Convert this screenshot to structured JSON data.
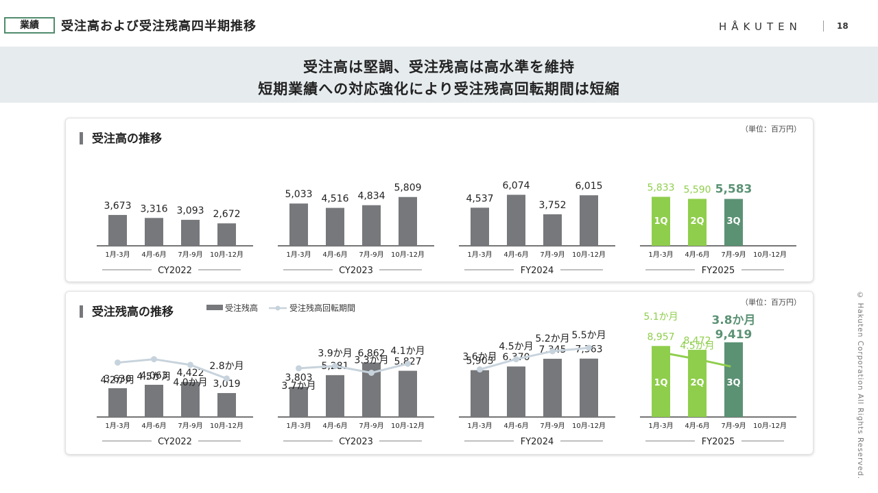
{
  "header": {
    "badge": "業績",
    "title": "受注高および受注残高四半期推移",
    "logo": "HÅKUTEN",
    "page_number": "18"
  },
  "banner": {
    "line1": "受注高は堅調、受注残高は高水準を維持",
    "line2": "短期業績への対応強化により受注残高回転期間は短縮"
  },
  "footer": {
    "copyright": "© Hakuten Corporation All Rights Reserved."
  },
  "colors": {
    "gray": "#76787b",
    "green_light": "#8fce4c",
    "green_dark": "#5b9274",
    "line": "#c7d3dc"
  },
  "chart_data": [
    {
      "type": "bar",
      "title": "受注高の推移",
      "unit": "（単位：百万円）",
      "quarters": [
        "1月-3月",
        "4月-6月",
        "7月-9月",
        "10月-12月"
      ],
      "groups": [
        {
          "label": "CY2022",
          "values": [
            3673,
            3316,
            3093,
            2672
          ],
          "labels": [
            "3,673",
            "3,316",
            "3,093",
            "2,672"
          ]
        },
        {
          "label": "CY2023",
          "values": [
            5033,
            4516,
            4834,
            5809
          ],
          "labels": [
            "5,033",
            "4,516",
            "4,834",
            "5,809"
          ]
        },
        {
          "label": "FY2024",
          "values": [
            4537,
            6074,
            3752,
            6015
          ],
          "labels": [
            "4,537",
            "6,074",
            "3,752",
            "6,015"
          ]
        },
        {
          "label": "FY2025",
          "values": [
            5833,
            5590,
            5583,
            null
          ],
          "labels": [
            "5,833",
            "5,590",
            "5,583",
            ""
          ],
          "bar_tags": [
            "1Q",
            "2Q",
            "3Q",
            ""
          ]
        }
      ],
      "ylim": [
        0,
        6500
      ]
    },
    {
      "type": "bar",
      "title": "受注残高の推移",
      "unit": "（単位：百万円）",
      "legend": {
        "bar": "受注残高",
        "line": "受注残高回転期間"
      },
      "quarters": [
        "1月-3月",
        "4月-6月",
        "7月-9月",
        "10月-12月"
      ],
      "groups": [
        {
          "label": "CY2022",
          "values": [
            3630,
            4063,
            4422,
            3019
          ],
          "labels": [
            "3,630",
            "4,063",
            "4,422",
            "3,019"
          ],
          "months": [
            4.2,
            4.5,
            4.0,
            2.8
          ],
          "month_labels": [
            "4.2か月",
            "4.5か月",
            "4.0か月",
            "2.8か月"
          ]
        },
        {
          "label": "CY2023",
          "values": [
            3803,
            5281,
            6862,
            5827
          ],
          "labels": [
            "3,803",
            "5,281",
            "6,862",
            "5,827"
          ],
          "months": [
            3.7,
            3.9,
            3.3,
            4.1
          ],
          "month_labels": [
            "3.7か月",
            "3.9か月",
            "3.3か月",
            "4.1か月"
          ]
        },
        {
          "label": "FY2024",
          "values": [
            5903,
            6370,
            7345,
            7363
          ],
          "labels": [
            "5,903",
            "6,370",
            "7,345",
            "7,363"
          ],
          "months": [
            3.6,
            4.5,
            5.2,
            5.5
          ],
          "month_labels": [
            "3.6か月",
            "4.5か月",
            "5.2か月",
            "5.5か月"
          ]
        },
        {
          "label": "FY2025",
          "values": [
            8957,
            8472,
            9419,
            null
          ],
          "labels": [
            "8,957",
            "8,472",
            "9,419",
            ""
          ],
          "months": [
            5.1,
            4.5,
            3.8,
            null
          ],
          "month_labels": [
            "5.1か月",
            "4.5か月",
            "3.8か月",
            ""
          ],
          "bar_tags": [
            "1Q",
            "2Q",
            "3Q",
            ""
          ]
        }
      ],
      "ylim": [
        0,
        10000
      ]
    }
  ]
}
